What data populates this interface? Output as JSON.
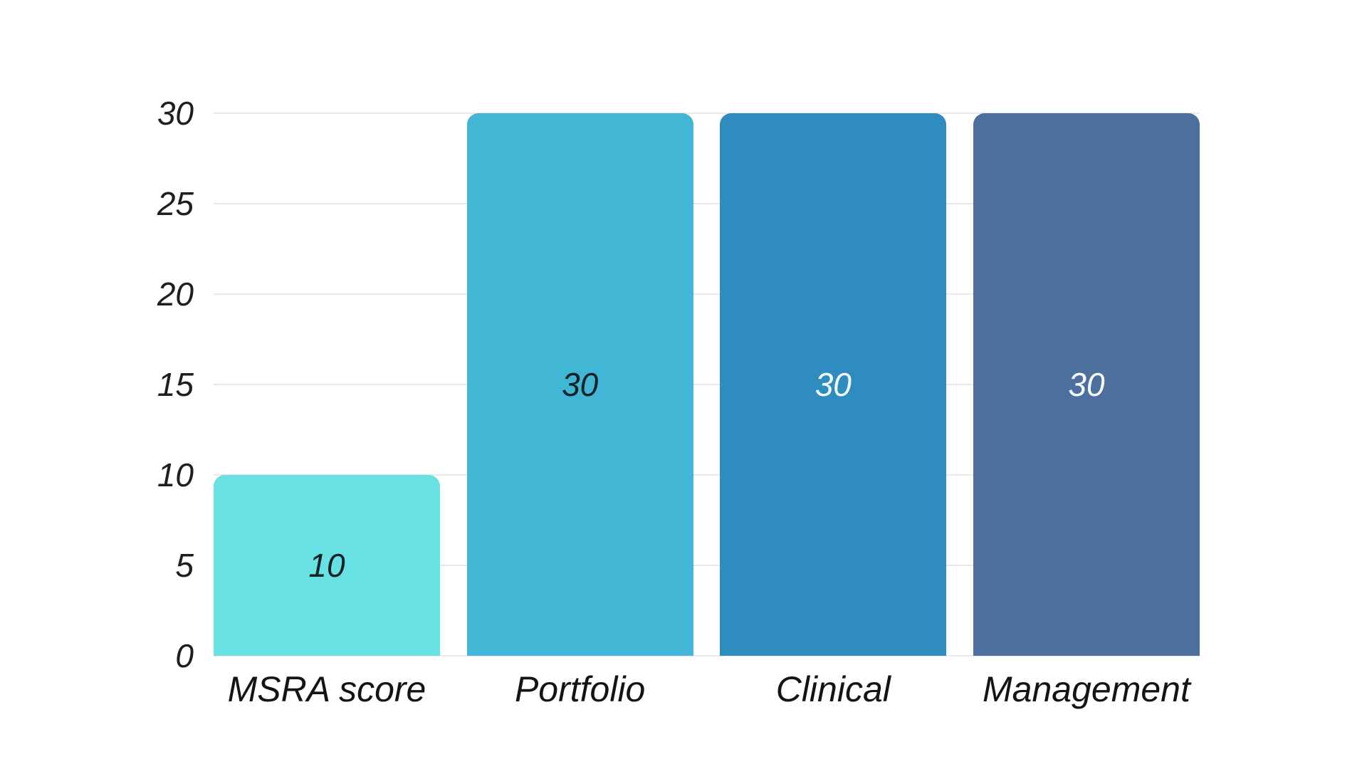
{
  "chart_data": {
    "type": "bar",
    "title": "",
    "xlabel": "",
    "ylabel": "",
    "categories": [
      "MSRA score",
      "Portfolio",
      "Clinical",
      "Management"
    ],
    "values": [
      10,
      30,
      30,
      30
    ],
    "data_labels": [
      "10",
      "30",
      "30",
      "30"
    ],
    "bar_colors": [
      "#67E1E1",
      "#42B6D5",
      "#2E8DBE",
      "#4D6F9D"
    ],
    "data_label_colors": [
      "#132128",
      "#132128",
      "#F4FAFD",
      "#F4FAFD"
    ],
    "ylim": [
      0,
      30
    ],
    "yticks": [
      "0",
      "5",
      "10",
      "15",
      "20",
      "25",
      "30"
    ],
    "grid": true,
    "legend": false
  },
  "style": {
    "background": "#FFFFFF",
    "grid_color": "#E9E9E9",
    "tick_label_color": "#1E1E1E",
    "category_label_color": "#141414"
  }
}
